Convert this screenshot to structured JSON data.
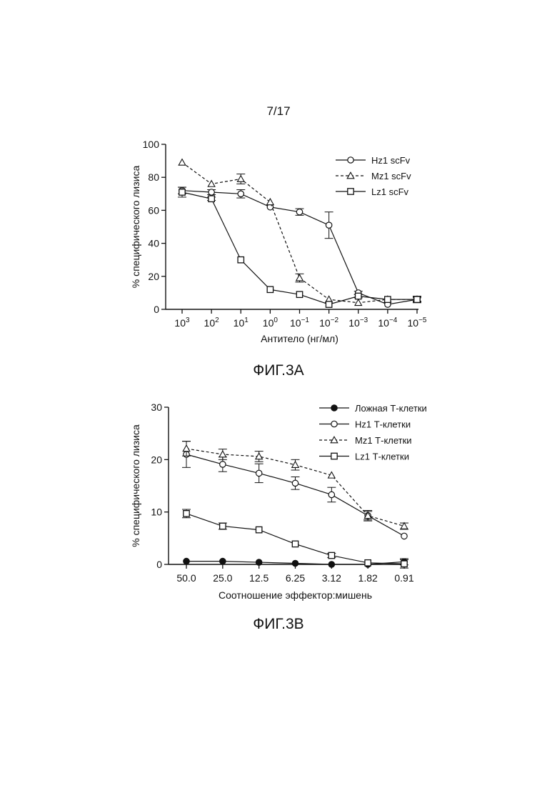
{
  "page": {
    "number": "7/17"
  },
  "chart_data": [
    {
      "type": "line",
      "caption": "ФИГ.3А",
      "xlabel": "Антитело (нг/мл)",
      "ylabel": "% специфического лизиса",
      "x_scale": "log10-reversed",
      "x_ticks": [
        "10^3",
        "10^2",
        "10^1",
        "10^0",
        "10^−1",
        "10^−2",
        "10^−3",
        "10^−4",
        "10^−5"
      ],
      "x": [
        1000,
        100,
        10,
        1,
        0.1,
        0.01,
        0.001,
        0.0001,
        1e-05
      ],
      "y_ticks": [
        0,
        20,
        40,
        60,
        80,
        100
      ],
      "ylim": [
        0,
        100
      ],
      "legend_position": "top-right",
      "grid": false,
      "series": [
        {
          "name": "Hz1 scFv",
          "marker": "circle-open",
          "line": "solid",
          "values": [
            72,
            71,
            70,
            62,
            59,
            51,
            10,
            3,
            6
          ],
          "errors": [
            2,
            1.5,
            2.5,
            0,
            2,
            8,
            1,
            0,
            1
          ]
        },
        {
          "name": "Mz1 scFv",
          "marker": "triangle-open",
          "line": "dashed",
          "values": [
            89,
            76,
            79,
            65,
            19,
            6,
            4,
            6,
            6
          ],
          "errors": [
            0,
            0,
            3,
            0,
            2.5,
            0,
            0,
            0,
            1.5
          ]
        },
        {
          "name": "Lz1 scFv",
          "marker": "square-open",
          "line": "solid",
          "values": [
            71,
            67,
            30,
            12,
            9,
            3,
            8,
            6,
            6
          ],
          "errors": [
            3,
            1,
            0,
            0,
            0,
            0,
            1,
            0,
            2
          ]
        }
      ]
    },
    {
      "type": "line",
      "caption": "ФИГ.3В",
      "xlabel": "Соотношение эффектор:мишень",
      "ylabel": "% специфического лизиса",
      "categories": [
        "50.0",
        "25.0",
        "12.5",
        "6.25",
        "3.12",
        "1.82",
        "0.91"
      ],
      "y_ticks": [
        0,
        10,
        20,
        30
      ],
      "ylim": [
        0,
        30
      ],
      "legend_position": "top-right",
      "grid": false,
      "series": [
        {
          "name": "Ложная Т-клетки",
          "marker": "circle-filled",
          "line": "solid",
          "values": [
            0.6,
            0.6,
            0.4,
            0.2,
            0,
            0,
            0.5
          ],
          "errors": [
            0,
            0,
            0,
            0,
            0,
            0,
            0.6
          ]
        },
        {
          "name": "Hz1 Т-клетки",
          "marker": "circle-open",
          "line": "solid",
          "values": [
            21,
            19.1,
            17.4,
            15.5,
            13.3,
            9.3,
            5.4
          ],
          "errors": [
            2.5,
            1.4,
            1.8,
            1.2,
            1.4,
            0.8,
            0
          ]
        },
        {
          "name": "Mz1 Т-клетки",
          "marker": "triangle-open",
          "line": "dashed",
          "values": [
            22.1,
            21,
            20.6,
            19,
            17,
            9.3,
            7.3
          ],
          "errors": [
            1.4,
            1,
            1,
            1,
            0,
            1,
            0.6
          ]
        },
        {
          "name": "Lz1 Т-клетки",
          "marker": "square-open",
          "line": "solid",
          "values": [
            9.7,
            7.3,
            6.6,
            3.9,
            1.7,
            0.3,
            0.1
          ],
          "errors": [
            0.8,
            0.6,
            0,
            0,
            0.4,
            0,
            0.8
          ]
        }
      ]
    }
  ]
}
